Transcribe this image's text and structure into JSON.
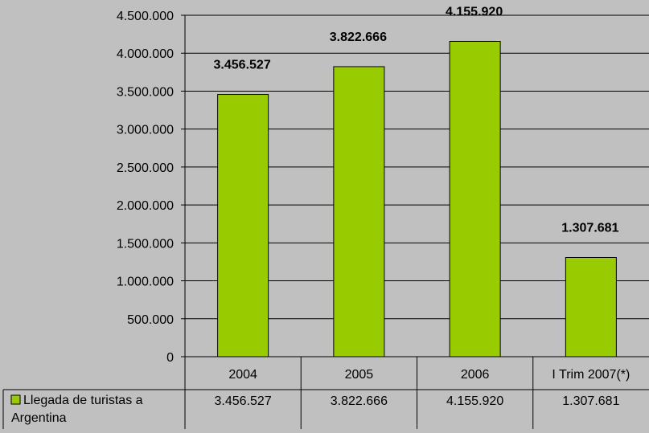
{
  "chart_data": {
    "type": "bar",
    "categories": [
      "2004",
      "2005",
      "2006",
      "I Trim 2007(*)"
    ],
    "series": [
      {
        "name": "Llegada de turistas a Argentina",
        "values": [
          3456527,
          3822666,
          4155920,
          1307681
        ],
        "value_labels": [
          "3.456.527",
          "3.822.666",
          "4.155.920",
          "1.307.681"
        ],
        "color": "#99cc00"
      }
    ],
    "ylim": [
      0,
      4500000
    ],
    "yticks": [
      0,
      500000,
      1000000,
      1500000,
      2000000,
      2500000,
      3000000,
      3500000,
      4000000,
      4500000
    ],
    "ytick_labels": [
      "0",
      "500.000",
      "1.000.000",
      "1.500.000",
      "2.000.000",
      "2.500.000",
      "3.000.000",
      "3.500.000",
      "4.000.000",
      "4.500.000"
    ],
    "grid": true,
    "legend": "data-table",
    "table": {
      "legend_label_lines": [
        "Llegada de turistas a",
        "Argentina"
      ]
    },
    "colors": {
      "background": "#c0c0c0",
      "bar": "#99cc00",
      "grid": "#000000"
    }
  }
}
